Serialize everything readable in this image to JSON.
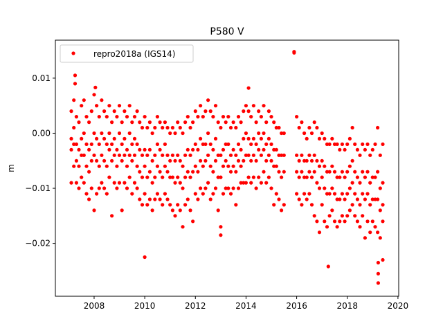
{
  "chart_data": {
    "type": "scatter",
    "title": "P580 V",
    "xlabel": "",
    "ylabel": "m",
    "xlim": [
      2006.47,
      2020.03
    ],
    "ylim": [
      -0.0296,
      0.0169
    ],
    "xticks": [
      2008,
      2010,
      2012,
      2014,
      2016,
      2018,
      2020
    ],
    "xtick_labels": [
      "2008",
      "2010",
      "2012",
      "2014",
      "2016",
      "2018",
      "2020"
    ],
    "yticks": [
      0.01,
      0.0,
      -0.01,
      -0.02
    ],
    "ytick_labels": [
      "0.01",
      "0.00",
      "−0.01",
      "−0.02"
    ],
    "grid": false,
    "legend": {
      "placement": "top-left",
      "entries": [
        "repro2018a (IGS14)"
      ]
    },
    "series": [
      {
        "name": "repro2018a (IGS14)",
        "color": "#ff0000",
        "marker": "dot",
        "x": [
          2007.1,
          2007.2,
          2007.3,
          2007.4,
          2007.5,
          2007.6,
          2007.7,
          2007.8,
          2007.9,
          2008.0,
          2008.1,
          2008.2,
          2008.3,
          2008.4,
          2008.5,
          2008.6,
          2008.7,
          2008.8,
          2008.9,
          2009.0,
          2009.1,
          2009.2,
          2009.3,
          2009.4,
          2009.5,
          2009.6,
          2009.7,
          2009.8,
          2009.9,
          2010.0,
          2010.1,
          2010.2,
          2010.3,
          2010.4,
          2010.5,
          2010.6,
          2010.7,
          2010.8,
          2010.9,
          2011.0,
          2011.1,
          2011.2,
          2011.3,
          2011.4,
          2011.5,
          2011.6,
          2011.7,
          2011.8,
          2011.9,
          2012.0,
          2012.1,
          2012.2,
          2012.3,
          2012.4,
          2012.5,
          2012.6,
          2012.7,
          2012.8,
          2012.9,
          2013.0,
          2013.1,
          2013.2,
          2013.3,
          2013.4,
          2013.5,
          2013.6,
          2013.7,
          2013.8,
          2013.9,
          2014.0,
          2014.1,
          2014.2,
          2014.3,
          2014.4,
          2014.5,
          2014.6,
          2014.7,
          2014.8,
          2014.9,
          2015.0,
          2015.1,
          2015.2,
          2015.3,
          2015.4,
          2015.5,
          2016.0,
          2016.1,
          2016.2,
          2016.3,
          2016.4,
          2016.5,
          2016.6,
          2016.7,
          2016.8,
          2016.9,
          2017.0,
          2017.1,
          2017.2,
          2017.3,
          2017.4,
          2017.5,
          2017.6,
          2017.7,
          2017.8,
          2017.9,
          2018.0,
          2018.1,
          2018.2,
          2018.3,
          2018.4,
          2018.5,
          2018.6,
          2018.7,
          2018.8,
          2018.9,
          2019.0,
          2019.1,
          2019.2,
          2019.3,
          2019.4,
          2015.9,
          2010.0,
          2017.25,
          2019.22,
          2019.4,
          2007.25,
          2014.1,
          2008.05,
          2013.0
        ],
        "y": [
          [
            0.004,
            -0.001,
            -0.003,
            -0.009
          ],
          [
            0.006,
            0.001,
            -0.002,
            -0.006
          ],
          [
            0.003,
            -0.002,
            -0.005,
            -0.009
          ],
          [
            0.002,
            -0.003,
            -0.006,
            -0.01
          ],
          [
            0.005,
            -0.001,
            -0.004,
            -0.008
          ],
          [
            0.006,
            0.0,
            -0.004,
            -0.009
          ],
          [
            0.003,
            -0.002,
            -0.006,
            -0.011
          ],
          [
            0.002,
            -0.003,
            -0.007,
            -0.012
          ],
          [
            0.004,
            -0.002,
            -0.005,
            -0.01
          ],
          [
            0.007,
            0.0,
            -0.004,
            -0.014
          ],
          [
            0.005,
            -0.001,
            -0.005,
            -0.011
          ],
          [
            0.003,
            -0.002,
            -0.006,
            -0.01
          ],
          [
            0.006,
            0.0,
            -0.004,
            -0.009
          ],
          [
            0.004,
            -0.001,
            -0.005,
            -0.01
          ],
          [
            0.003,
            -0.002,
            -0.006,
            -0.011
          ],
          [
            0.005,
            0.0,
            -0.003,
            -0.008
          ],
          [
            0.002,
            -0.002,
            -0.005,
            -0.015
          ],
          [
            0.004,
            -0.001,
            -0.004,
            -0.009
          ],
          [
            0.003,
            -0.003,
            -0.006,
            -0.01
          ],
          [
            0.005,
            0.0,
            -0.004,
            -0.009
          ],
          [
            0.002,
            -0.002,
            -0.005,
            -0.014
          ],
          [
            0.004,
            -0.001,
            -0.004,
            -0.009
          ],
          [
            0.003,
            -0.003,
            -0.006,
            -0.01
          ],
          [
            0.005,
            0.0,
            -0.004,
            -0.008
          ],
          [
            0.002,
            -0.002,
            -0.005,
            -0.011
          ],
          [
            0.003,
            -0.001,
            -0.004,
            -0.009
          ],
          [
            0.004,
            -0.002,
            -0.006,
            -0.01
          ],
          [
            0.002,
            -0.003,
            -0.007,
            -0.012
          ],
          [
            0.001,
            -0.004,
            -0.008,
            -0.013
          ],
          [
            0.003,
            -0.003,
            -0.006,
            -0.011
          ],
          [
            0.001,
            -0.004,
            -0.008,
            -0.013
          ],
          [
            0.002,
            -0.003,
            -0.007,
            -0.012
          ],
          [
            0.0,
            -0.005,
            -0.009,
            -0.014
          ],
          [
            0.001,
            -0.004,
            -0.008,
            -0.012
          ],
          [
            0.003,
            -0.002,
            -0.006,
            -0.011
          ],
          [
            0.002,
            -0.003,
            -0.007,
            -0.012
          ],
          [
            0.001,
            -0.004,
            -0.008,
            -0.013
          ],
          [
            0.002,
            -0.002,
            -0.006,
            -0.011
          ],
          [
            0.001,
            -0.004,
            -0.007,
            -0.012
          ],
          [
            0.0,
            -0.005,
            -0.008,
            -0.013
          ],
          [
            0.001,
            -0.004,
            -0.008,
            -0.014
          ],
          [
            0.0,
            -0.005,
            -0.009,
            -0.015
          ],
          [
            0.002,
            -0.004,
            -0.008,
            -0.013
          ],
          [
            0.001,
            -0.005,
            -0.009,
            -0.014
          ],
          [
            0.0,
            -0.006,
            -0.01,
            -0.017
          ],
          [
            0.002,
            -0.004,
            -0.008,
            -0.013
          ],
          [
            0.003,
            -0.003,
            -0.007,
            -0.012
          ],
          [
            0.001,
            -0.004,
            -0.008,
            -0.014
          ],
          [
            0.002,
            -0.003,
            -0.007,
            -0.016
          ],
          [
            0.004,
            -0.002,
            -0.006,
            -0.011
          ],
          [
            0.003,
            -0.003,
            -0.007,
            -0.012
          ],
          [
            0.005,
            -0.001,
            -0.005,
            -0.01
          ],
          [
            0.003,
            -0.002,
            -0.006,
            -0.011
          ],
          [
            0.004,
            -0.002,
            -0.005,
            -0.01
          ],
          [
            0.006,
            0.0,
            -0.004,
            -0.009
          ],
          [
            0.004,
            -0.002,
            -0.006,
            -0.012
          ],
          [
            0.003,
            -0.003,
            -0.007,
            -0.011
          ],
          [
            0.005,
            -0.001,
            -0.005,
            -0.01
          ],
          [
            0.002,
            -0.004,
            -0.008,
            -0.014
          ],
          [
            0.001,
            -0.004,
            -0.008,
            -0.017
          ],
          [
            0.003,
            -0.003,
            -0.006,
            -0.011
          ],
          [
            0.002,
            -0.002,
            -0.005,
            -0.01
          ],
          [
            0.003,
            -0.002,
            -0.006,
            -0.01
          ],
          [
            0.001,
            -0.004,
            -0.007,
            -0.011
          ],
          [
            0.002,
            -0.003,
            -0.006,
            -0.01
          ],
          [
            0.001,
            -0.004,
            -0.007,
            -0.013
          ],
          [
            0.003,
            -0.002,
            -0.005,
            -0.01
          ],
          [
            0.002,
            -0.003,
            -0.006,
            -0.009
          ],
          [
            0.004,
            -0.001,
            -0.005,
            -0.009
          ],
          [
            0.005,
            0.0,
            -0.004,
            -0.009
          ],
          [
            0.004,
            -0.001,
            -0.004,
            -0.008
          ],
          [
            0.003,
            -0.002,
            -0.005,
            -0.009
          ],
          [
            0.005,
            -0.001,
            -0.004,
            -0.008
          ],
          [
            0.002,
            -0.002,
            -0.005,
            -0.01
          ],
          [
            0.004,
            0.0,
            -0.003,
            -0.008
          ],
          [
            0.003,
            -0.001,
            -0.004,
            -0.009
          ],
          [
            0.005,
            0.0,
            -0.003,
            -0.007
          ],
          [
            0.002,
            -0.002,
            -0.005,
            -0.009
          ],
          [
            0.004,
            -0.001,
            -0.004,
            -0.008
          ],
          [
            0.003,
            -0.002,
            -0.005,
            -0.01
          ],
          [
            0.002,
            -0.003,
            -0.006,
            -0.013
          ],
          [
            0.001,
            -0.003,
            -0.006,
            -0.011
          ],
          [
            0.001,
            -0.004,
            -0.007,
            -0.012
          ],
          [
            0.0,
            -0.004,
            -0.008,
            -0.014
          ],
          [
            0.0,
            -0.004,
            -0.007,
            -0.013
          ],
          [
            0.003,
            -0.004,
            -0.007,
            -0.011
          ],
          [
            0.001,
            -0.005,
            -0.008,
            -0.012
          ],
          [
            0.002,
            -0.004,
            -0.007,
            -0.013
          ],
          [
            0.0,
            -0.005,
            -0.008,
            -0.011
          ],
          [
            -0.001,
            -0.005,
            -0.008,
            -0.012
          ],
          [
            0.001,
            -0.004,
            -0.007,
            -0.011
          ],
          [
            0.0,
            -0.005,
            -0.008,
            -0.013
          ],
          [
            0.002,
            -0.004,
            -0.007,
            -0.015
          ],
          [
            0.001,
            -0.005,
            -0.009,
            -0.016
          ],
          [
            -0.001,
            -0.006,
            -0.01,
            -0.018
          ],
          [
            0.0,
            -0.005,
            -0.008,
            -0.013
          ],
          [
            -0.001,
            -0.006,
            -0.01,
            -0.016
          ],
          [
            -0.002,
            -0.007,
            -0.011,
            -0.017
          ],
          [
            -0.002,
            -0.007,
            -0.011,
            -0.015
          ],
          [
            -0.001,
            -0.006,
            -0.01,
            -0.014
          ],
          [
            -0.002,
            -0.007,
            -0.011,
            -0.016
          ],
          [
            -0.002,
            -0.008,
            -0.012,
            -0.017
          ],
          [
            -0.003,
            -0.008,
            -0.012,
            -0.016
          ],
          [
            -0.002,
            -0.007,
            -0.011,
            -0.015
          ],
          [
            -0.003,
            -0.008,
            -0.012,
            -0.016
          ],
          [
            -0.002,
            -0.007,
            -0.011,
            -0.015
          ],
          [
            -0.001,
            -0.006,
            -0.01,
            -0.014
          ],
          [
            0.001,
            -0.005,
            -0.009,
            -0.013
          ],
          [
            -0.002,
            -0.007,
            -0.011,
            -0.015
          ],
          [
            -0.003,
            -0.008,
            -0.012,
            -0.016
          ],
          [
            -0.004,
            -0.009,
            -0.013,
            -0.017
          ],
          [
            -0.002,
            -0.007,
            -0.011,
            -0.015
          ],
          [
            -0.003,
            -0.008,
            -0.012,
            -0.019
          ],
          [
            -0.002,
            -0.007,
            -0.011,
            -0.016
          ],
          [
            -0.004,
            -0.009,
            -0.013,
            -0.018
          ],
          [
            -0.003,
            -0.008,
            -0.012,
            -0.016
          ],
          [
            -0.002,
            -0.008,
            -0.012,
            -0.017
          ],
          [
            0.001,
            -0.007,
            -0.012,
            -0.018
          ],
          [
            -0.004,
            -0.01,
            -0.014,
            -0.019
          ],
          [
            -0.002,
            -0.009,
            -0.013,
            -0.016
          ],
          [
            0.0148,
            0.0146
          ],
          [
            -0.0225
          ],
          [
            -0.0242
          ],
          [
            -0.0272,
            -0.0255,
            -0.0235
          ],
          [
            -0.023
          ],
          [
            0.0105,
            0.009
          ],
          [
            0.0082
          ],
          [
            0.0083
          ],
          [
            -0.0185
          ]
        ]
      }
    ]
  }
}
